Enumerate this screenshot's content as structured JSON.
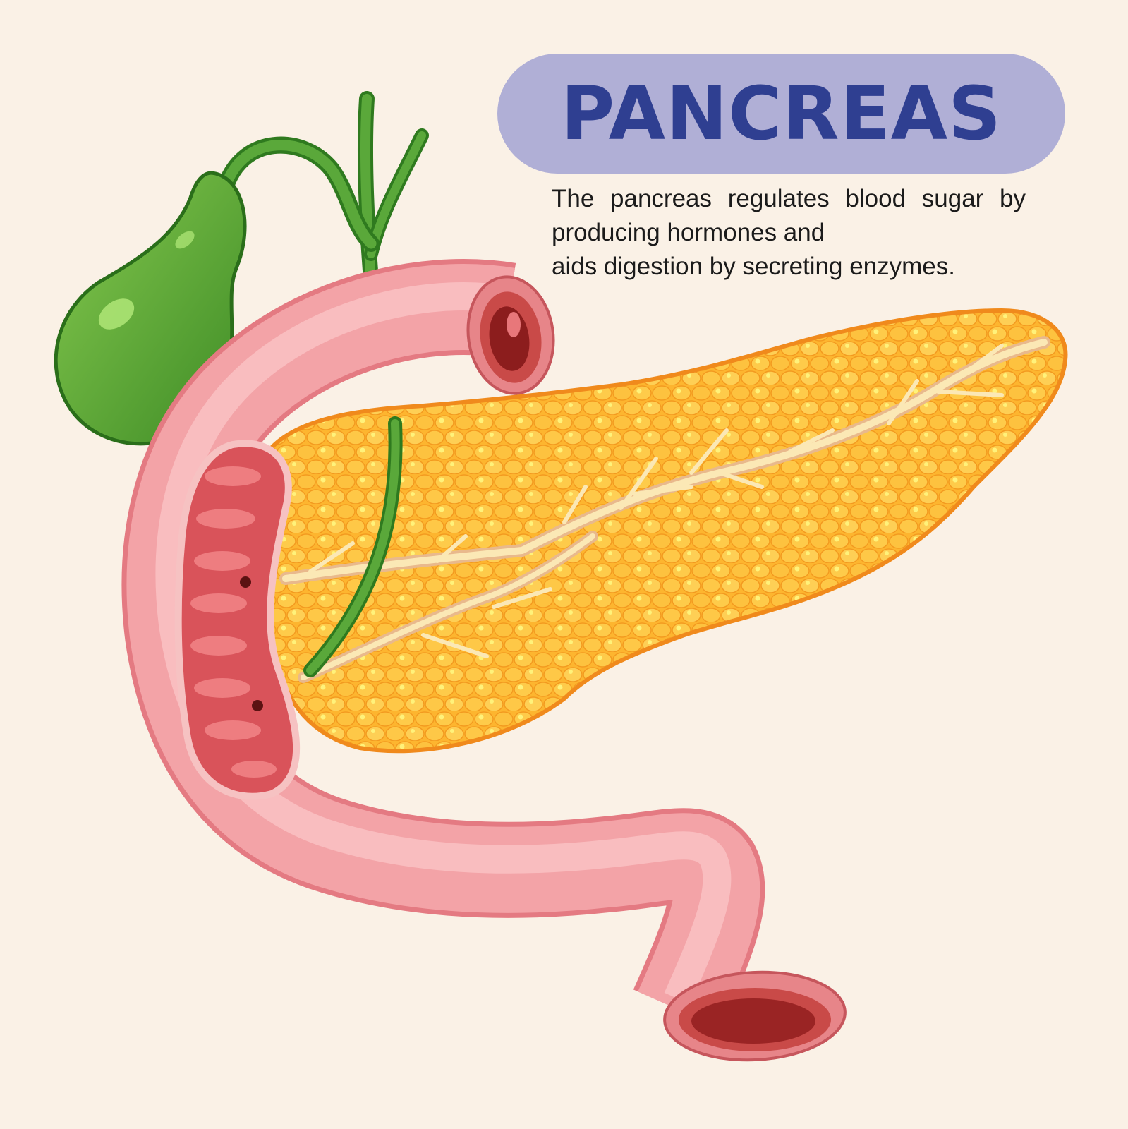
{
  "title": "PANCREAS",
  "description": {
    "line1": "The pancreas regulates blood sugar by",
    "line2": "producing hormones and",
    "line3": "aids digestion by secreting enzymes."
  },
  "colors": {
    "background": "#faf1e6",
    "title_pill": "#b0afd6",
    "title_text": "#2f3f91",
    "gallbladder": "#4a9a2f",
    "duodenum": "#f2a0a4",
    "pancreas": "#fdb12c",
    "duct": "#fbe8b5"
  }
}
